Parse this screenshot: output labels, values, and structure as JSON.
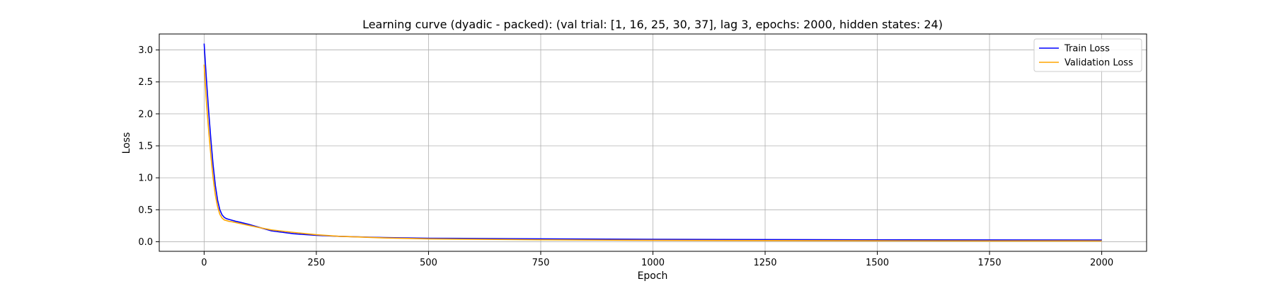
{
  "chart_data": {
    "type": "line",
    "title": "Learning curve (dyadic - packed): (val trial: [1, 16, 25, 30, 37], lag 3, epochs: 2000, hidden states: 24)",
    "xlabel": "Epoch",
    "ylabel": "Loss",
    "xlim": [
      -100,
      2100
    ],
    "ylim": [
      -0.15,
      3.25
    ],
    "xticks": [
      0,
      250,
      500,
      750,
      1000,
      1250,
      1500,
      1750,
      2000
    ],
    "xtick_labels": [
      "0",
      "250",
      "500",
      "750",
      "1000",
      "1250",
      "1500",
      "1750",
      "2000"
    ],
    "yticks": [
      0.0,
      0.5,
      1.0,
      1.5,
      2.0,
      2.5,
      3.0
    ],
    "ytick_labels": [
      "0.0",
      "0.5",
      "1.0",
      "1.5",
      "2.0",
      "2.5",
      "3.0"
    ],
    "grid": true,
    "legend_position": "top-right",
    "series": [
      {
        "name": "Train Loss",
        "color": "#0000ff",
        "x": [
          0,
          5,
          10,
          15,
          20,
          25,
          30,
          35,
          40,
          45,
          50,
          55,
          60,
          70,
          80,
          100,
          120,
          150,
          200,
          250,
          300,
          400,
          500,
          750,
          1000,
          1250,
          1500,
          1750,
          2000
        ],
        "y": [
          3.1,
          2.55,
          2.05,
          1.6,
          1.2,
          0.88,
          0.65,
          0.5,
          0.42,
          0.38,
          0.36,
          0.35,
          0.34,
          0.32,
          0.305,
          0.27,
          0.23,
          0.17,
          0.125,
          0.1,
          0.085,
          0.065,
          0.055,
          0.045,
          0.038,
          0.033,
          0.03,
          0.028,
          0.027
        ]
      },
      {
        "name": "Validation Loss",
        "color": "#ffa500",
        "x": [
          0,
          5,
          10,
          15,
          20,
          25,
          30,
          35,
          40,
          45,
          50,
          55,
          60,
          70,
          80,
          100,
          120,
          150,
          200,
          250,
          300,
          400,
          500,
          750,
          1000,
          1250,
          1500,
          1750,
          2000
        ],
        "y": [
          2.77,
          2.2,
          1.75,
          1.35,
          1.0,
          0.73,
          0.55,
          0.43,
          0.37,
          0.34,
          0.33,
          0.32,
          0.315,
          0.3,
          0.285,
          0.255,
          0.225,
          0.185,
          0.145,
          0.11,
          0.085,
          0.06,
          0.045,
          0.03,
          0.022,
          0.018,
          0.015,
          0.013,
          0.012
        ]
      }
    ]
  }
}
